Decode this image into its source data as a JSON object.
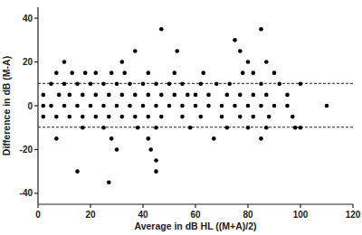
{
  "chart_data": {
    "type": "scatter",
    "x_label": "Average in dB HL ((M+A)/2)",
    "y_label": "Difference in dB (M-A)",
    "color": "#000000",
    "marker": "circle",
    "grid": false,
    "xlim": [
      0,
      120
    ],
    "xticks": [
      0,
      20,
      40,
      60,
      80,
      100,
      120
    ],
    "ylim": [
      -45,
      45
    ],
    "yticks": [
      -40,
      -20,
      0,
      20,
      40
    ],
    "limits_of_agreement": [
      10.2,
      -9.8
    ],
    "x": [
      47,
      85,
      75,
      37,
      53,
      77,
      10,
      32,
      80,
      87,
      7,
      13,
      18,
      22,
      28,
      33,
      42,
      52,
      63,
      78,
      82,
      90,
      5,
      10,
      15,
      20,
      25,
      30,
      35,
      40,
      45,
      50,
      55,
      62,
      68,
      73,
      85,
      92,
      100,
      2,
      8,
      12,
      17,
      22,
      27,
      32,
      37,
      42,
      47,
      52,
      57,
      60,
      65,
      72,
      77,
      82,
      87,
      95,
      2,
      5,
      10,
      15,
      20,
      25,
      30,
      35,
      40,
      45,
      50,
      55,
      60,
      65,
      70,
      75,
      80,
      85,
      90,
      95,
      110,
      2,
      7,
      12,
      17,
      22,
      27,
      32,
      37,
      42,
      47,
      55,
      62,
      70,
      77,
      82,
      88,
      97,
      17,
      25,
      38,
      45,
      58,
      72,
      80,
      87,
      98,
      100,
      7,
      28,
      42,
      67,
      85,
      30,
      43,
      45,
      15,
      45,
      27
    ],
    "y": [
      35,
      35,
      30,
      25,
      25,
      25,
      20,
      20,
      20,
      20,
      15,
      15,
      15,
      15,
      15,
      15,
      15,
      15,
      15,
      15,
      15,
      15,
      10,
      10,
      10,
      10,
      10,
      10,
      10,
      10,
      10,
      10,
      10,
      10,
      10,
      10,
      10,
      10,
      10,
      5,
      5,
      5,
      5,
      5,
      5,
      5,
      5,
      5,
      5,
      5,
      5,
      5,
      5,
      5,
      5,
      5,
      5,
      5,
      0,
      0,
      0,
      0,
      0,
      0,
      0,
      0,
      0,
      0,
      0,
      0,
      0,
      0,
      0,
      0,
      0,
      0,
      0,
      0,
      0,
      -5,
      -5,
      -5,
      -5,
      -5,
      -5,
      -5,
      -5,
      -5,
      -5,
      -5,
      -5,
      -5,
      -5,
      -5,
      -5,
      -5,
      -10,
      -10,
      -10,
      -10,
      -10,
      -10,
      -10,
      -10,
      -10,
      -10,
      -15,
      -15,
      -15,
      -15,
      -15,
      -20,
      -20,
      -25,
      -30,
      -30,
      -35
    ]
  }
}
